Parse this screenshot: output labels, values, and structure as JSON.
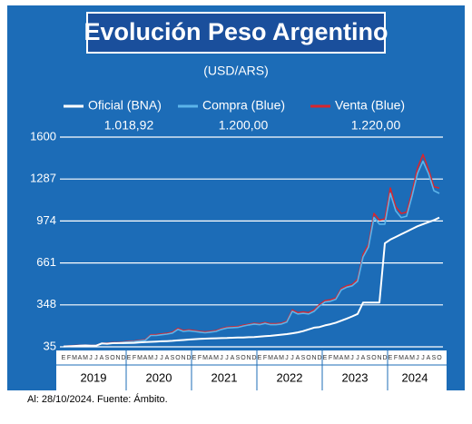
{
  "chart_data": {
    "type": "line",
    "title": "Evolución Peso Argentino",
    "subtitle": "(USD/ARS)",
    "categories": [
      "E",
      "F",
      "M",
      "A",
      "M",
      "J",
      "J",
      "A",
      "S",
      "O",
      "N",
      "D",
      "E",
      "F",
      "M",
      "A",
      "M",
      "J",
      "J",
      "A",
      "S",
      "O",
      "N",
      "D",
      "E",
      "F",
      "M",
      "A",
      "M",
      "J",
      "J",
      "A",
      "S",
      "O",
      "N",
      "D",
      "E",
      "F",
      "M",
      "A",
      "M",
      "J",
      "J",
      "A",
      "S",
      "O",
      "N",
      "D",
      "E",
      "F",
      "M",
      "A",
      "M",
      "J",
      "J",
      "A",
      "S",
      "O",
      "N",
      "D",
      "E",
      "F",
      "M",
      "A",
      "M",
      "J",
      "J",
      "A",
      "S",
      "O"
    ],
    "years": [
      "2019",
      "2020",
      "2021",
      "2022",
      "2023",
      "2024"
    ],
    "series": [
      {
        "name": "Oficial (BNA)",
        "color": "#ffffff",
        "latest": "1.018,92",
        "values": [
          38,
          39,
          41,
          44,
          45,
          43,
          44,
          60,
          58,
          62,
          63,
          63,
          64,
          65,
          68,
          70,
          72,
          74,
          76,
          78,
          80,
          83,
          86,
          89,
          92,
          94,
          96,
          98,
          99,
          100,
          101,
          103,
          104,
          105,
          107,
          108,
          111,
          114,
          117,
          121,
          126,
          130,
          136,
          143,
          152,
          165,
          178,
          183,
          195,
          204,
          215,
          230,
          246,
          262,
          280,
          365,
          365,
          365,
          365,
          808,
          835,
          855,
          875,
          895,
          915,
          935,
          950,
          965,
          980,
          1000
        ]
      },
      {
        "name": "Compra (Blue)",
        "color": "#5bb4ea",
        "latest": "1.200,00",
        "values": [
          37,
          39,
          42,
          44,
          45,
          43,
          44,
          58,
          60,
          63,
          63,
          68,
          72,
          74,
          80,
          84,
          120,
          120,
          125,
          130,
          138,
          165,
          150,
          155,
          150,
          145,
          140,
          145,
          150,
          165,
          175,
          178,
          180,
          190,
          198,
          205,
          200,
          210,
          200,
          200,
          205,
          220,
          300,
          280,
          285,
          280,
          300,
          340,
          370,
          375,
          390,
          460,
          480,
          490,
          525,
          705,
          780,
          1000,
          950,
          950,
          1180,
          1050,
          1000,
          1010,
          1160,
          1330,
          1420,
          1330,
          1200,
          1180
        ]
      },
      {
        "name": "Venta (Blue)",
        "color": "#d7262e",
        "latest": "1.220,00",
        "values": [
          39,
          41,
          44,
          46,
          47,
          45,
          46,
          61,
          63,
          66,
          66,
          71,
          76,
          78,
          84,
          88,
          125,
          126,
          131,
          136,
          145,
          173,
          157,
          162,
          156,
          151,
          146,
          151,
          156,
          171,
          181,
          184,
          186,
          196,
          204,
          211,
          207,
          217,
          207,
          207,
          212,
          227,
          310,
          290,
          295,
          290,
          310,
          350,
          380,
          385,
          400,
          470,
          490,
          500,
          540,
          725,
          800,
          1030,
          980,
          990,
          1220,
          1080,
          1030,
          1040,
          1190,
          1370,
          1470,
          1360,
          1230,
          1220
        ]
      }
    ],
    "ylim": [
      35,
      1600
    ],
    "yticks": [
      35,
      348,
      661,
      974,
      1287,
      1600
    ],
    "grid": true,
    "note": "Al: 28/10/2024. Fuente: Ámbito."
  }
}
